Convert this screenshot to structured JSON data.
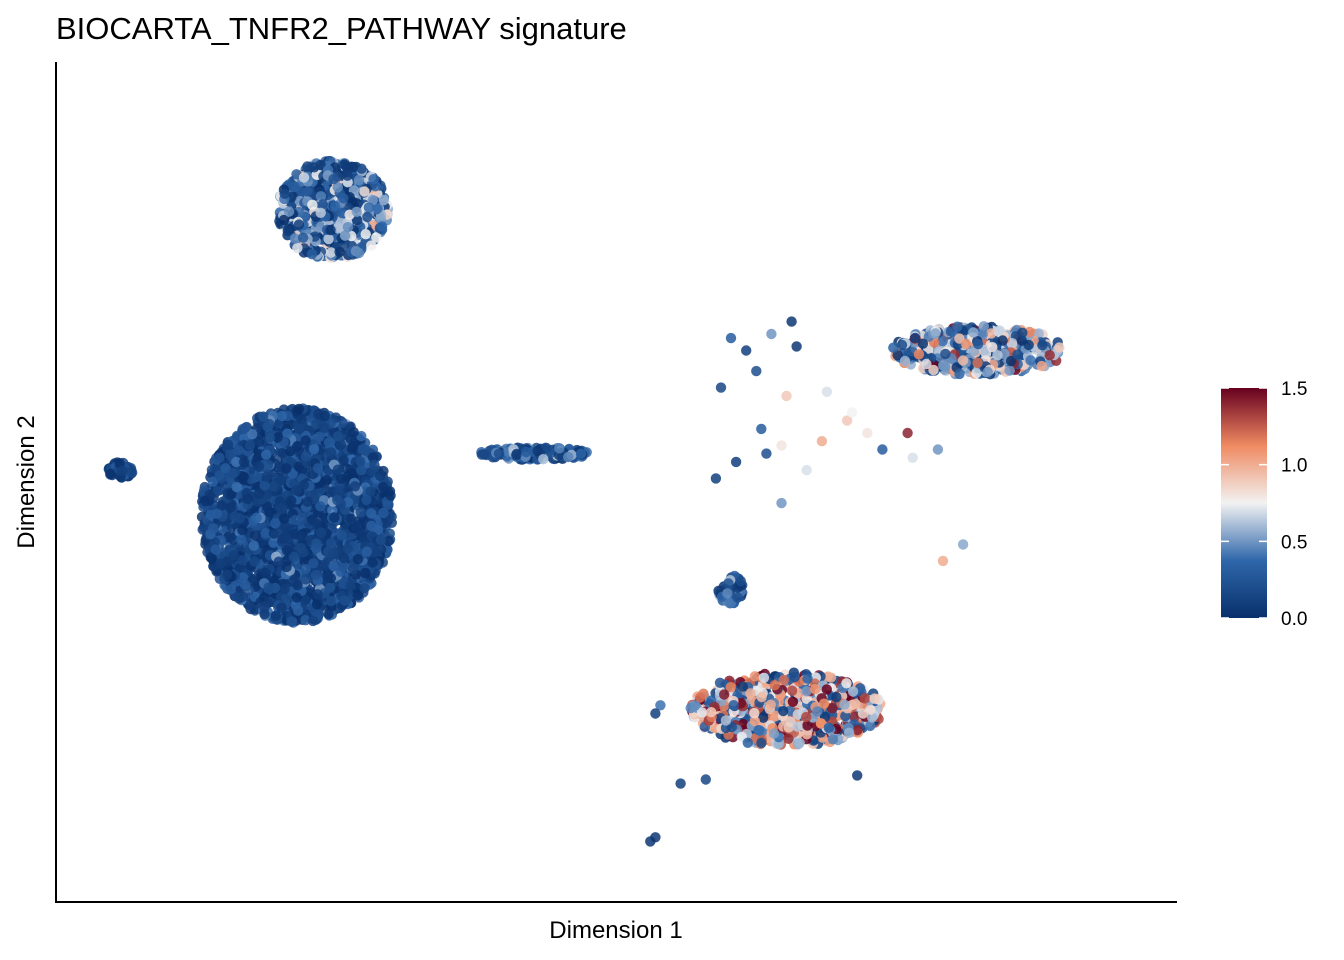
{
  "chart_data": {
    "type": "scatter",
    "title": "BIOCARTA_TNFR2_PATHWAY signature",
    "xlabel": "Dimension 1",
    "ylabel": "Dimension 2",
    "xlim": [
      -10,
      12
    ],
    "ylim": [
      -10,
      10
    ],
    "axis_ticks_shown": false,
    "grid": false,
    "color_scale": {
      "name": "RdBu reversed",
      "range": [
        0.0,
        1.5
      ],
      "ticks": [
        "0.0",
        "0.5",
        "1.0",
        "1.5"
      ],
      "tick_values": [
        0.0,
        0.5,
        1.0,
        1.5
      ],
      "stops": [
        "#08306b",
        "#2f67aa",
        "#f2f2f2",
        "#ef8a62",
        "#67001f"
      ],
      "legend_position": "right"
    },
    "clusters": [
      {
        "label": "upper-left cluster",
        "center": [
          -4.6,
          6.6
        ],
        "spread": [
          1.1,
          1.2
        ],
        "n": 700,
        "mean_score": 0.3,
        "score_sd": 0.3
      },
      {
        "label": "large left cluster",
        "center": [
          -5.3,
          -0.8
        ],
        "spread": [
          1.9,
          2.6
        ],
        "n": 2600,
        "mean_score": 0.12,
        "score_sd": 0.15
      },
      {
        "label": "small left blob",
        "center": [
          -8.8,
          0.3
        ],
        "spread": [
          0.25,
          0.2
        ],
        "n": 60,
        "mean_score": 0.1,
        "score_sd": 0.15
      },
      {
        "label": "bridge",
        "center": [
          -0.6,
          0.7
        ],
        "spread": [
          1.1,
          0.15
        ],
        "n": 160,
        "mean_score": 0.25,
        "score_sd": 0.25
      },
      {
        "label": "right cluster",
        "center": [
          8.2,
          3.2
        ],
        "spread": [
          1.7,
          0.6
        ],
        "n": 500,
        "mean_score": 0.45,
        "score_sd": 0.45
      },
      {
        "label": "bottom cluster",
        "center": [
          4.4,
          -5.5
        ],
        "spread": [
          1.9,
          0.9
        ],
        "n": 700,
        "mean_score": 0.75,
        "score_sd": 0.5
      },
      {
        "label": "small middle blob",
        "center": [
          3.3,
          -2.6
        ],
        "spread": [
          0.25,
          0.35
        ],
        "n": 60,
        "mean_score": 0.2,
        "score_sd": 0.3
      }
    ],
    "scattered_points": [
      {
        "x": 3.3,
        "y": 3.5,
        "value": 0.3
      },
      {
        "x": 3.6,
        "y": 3.2,
        "value": 0.1
      },
      {
        "x": 4.1,
        "y": 3.6,
        "value": 0.5
      },
      {
        "x": 4.5,
        "y": 3.9,
        "value": 0.05
      },
      {
        "x": 3.8,
        "y": 2.7,
        "value": 0.2
      },
      {
        "x": 3.1,
        "y": 2.3,
        "value": 0.15
      },
      {
        "x": 4.4,
        "y": 2.1,
        "value": 0.9
      },
      {
        "x": 3.9,
        "y": 1.3,
        "value": 0.3
      },
      {
        "x": 5.2,
        "y": 2.2,
        "value": 0.7
      },
      {
        "x": 5.6,
        "y": 1.5,
        "value": 0.9
      },
      {
        "x": 5.1,
        "y": 1.0,
        "value": 1.0
      },
      {
        "x": 6.0,
        "y": 1.2,
        "value": 0.8
      },
      {
        "x": 6.3,
        "y": 0.8,
        "value": 0.3
      },
      {
        "x": 6.8,
        "y": 1.2,
        "value": 1.4
      },
      {
        "x": 6.9,
        "y": 0.6,
        "value": 0.7
      },
      {
        "x": 7.4,
        "y": 0.8,
        "value": 0.5
      },
      {
        "x": 4.8,
        "y": 0.3,
        "value": 0.7
      },
      {
        "x": 4.3,
        "y": -0.5,
        "value": 0.5
      },
      {
        "x": 4.0,
        "y": 0.7,
        "value": 0.2
      },
      {
        "x": 3.4,
        "y": 0.5,
        "value": 0.1
      },
      {
        "x": 3.0,
        "y": 0.1,
        "value": 0.1
      },
      {
        "x": 4.3,
        "y": 0.9,
        "value": 0.8
      },
      {
        "x": 7.9,
        "y": -1.5,
        "value": 0.55
      },
      {
        "x": 7.5,
        "y": -1.9,
        "value": 1.0
      },
      {
        "x": 1.9,
        "y": -5.4,
        "value": 0.4
      },
      {
        "x": 1.8,
        "y": -5.6,
        "value": 0.1
      },
      {
        "x": 2.3,
        "y": -7.3,
        "value": 0.1
      },
      {
        "x": 2.8,
        "y": -7.2,
        "value": 0.15
      },
      {
        "x": 5.8,
        "y": -7.1,
        "value": 0.05
      },
      {
        "x": 1.8,
        "y": -8.6,
        "value": 0.05
      },
      {
        "x": 1.7,
        "y": -8.7,
        "value": 0.05
      },
      {
        "x": 4.6,
        "y": 3.3,
        "value": 0.05
      },
      {
        "x": 5.7,
        "y": 1.7,
        "value": 0.75
      }
    ]
  }
}
